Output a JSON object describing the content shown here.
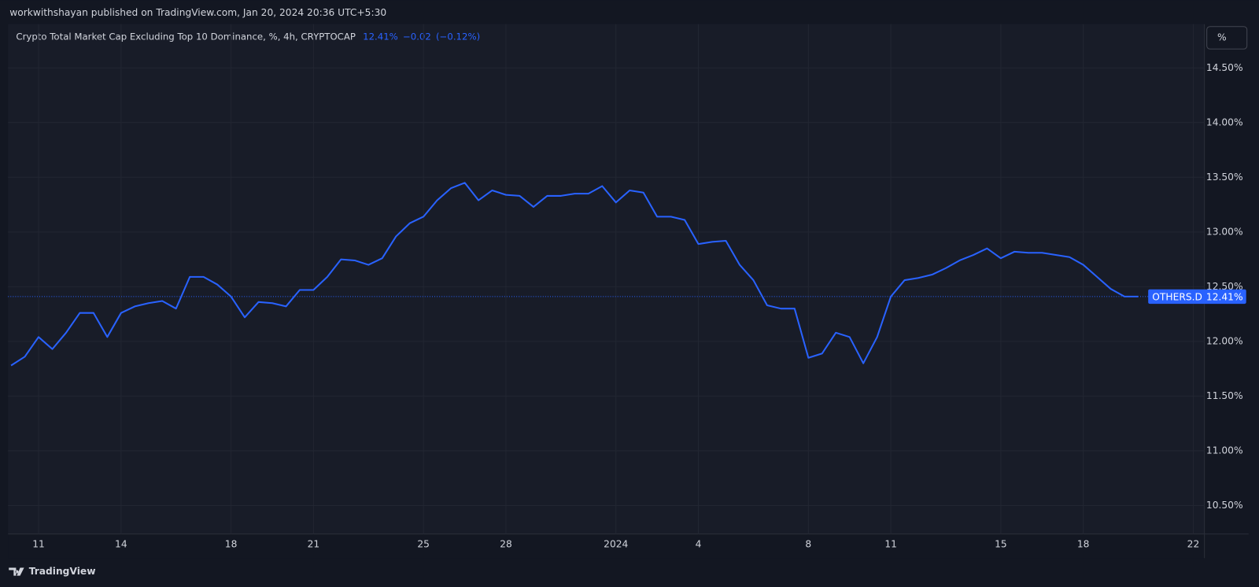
{
  "header": {
    "publisher": "workwithshayan published on TradingView.com, Jan 20, 2024 20:36 UTC+5:30",
    "scale_button": "%",
    "brand": "TradingView"
  },
  "chart_data": {
    "type": "line",
    "title": "Crypto Total Market Cap Excluding Top 10 Dominance, %, 4h, CRYPTOCAP",
    "change": "−0.02",
    "change_pct": "(−0.12%)",
    "price_line": {
      "name": "OTHERS.D",
      "value": 12.41,
      "label": "12.41%"
    },
    "categories": [
      null,
      null,
      "11",
      null,
      null,
      null,
      null,
      null,
      "14",
      null,
      null,
      null,
      null,
      null,
      null,
      null,
      "18",
      null,
      null,
      null,
      null,
      null,
      "21",
      null,
      null,
      null,
      null,
      null,
      null,
      null,
      "25",
      null,
      null,
      null,
      null,
      null,
      "28",
      null,
      null,
      null,
      null,
      null,
      null,
      null,
      "2024",
      null,
      null,
      null,
      null,
      null,
      "4",
      null,
      null,
      null,
      null,
      null,
      null,
      null,
      "8",
      null,
      null,
      null,
      null,
      null,
      "11",
      null,
      null,
      null,
      null,
      null,
      null,
      null,
      "15",
      null,
      null,
      null,
      null,
      null,
      "18",
      null,
      null,
      null,
      null,
      null,
      null,
      null,
      "22"
    ],
    "series": [
      {
        "name": "OTHERS.D",
        "color": "#2962ff",
        "values": [
          11.78,
          11.86,
          12.04,
          11.93,
          12.08,
          12.26,
          12.26,
          12.04,
          12.26,
          12.32,
          12.35,
          12.37,
          12.3,
          12.59,
          12.59,
          12.52,
          12.41,
          12.22,
          12.36,
          12.35,
          12.32,
          12.47,
          12.47,
          12.59,
          12.75,
          12.74,
          12.7,
          12.76,
          12.96,
          13.08,
          13.14,
          13.29,
          13.4,
          13.45,
          13.29,
          13.38,
          13.34,
          13.33,
          13.23,
          13.33,
          13.33,
          13.35,
          13.35,
          13.42,
          13.27,
          13.38,
          13.36,
          13.14,
          13.14,
          13.11,
          12.89,
          12.91,
          12.92,
          12.7,
          12.56,
          12.33,
          12.3,
          12.3,
          11.85,
          11.89,
          12.08,
          12.04,
          11.8,
          12.04,
          12.41,
          12.56,
          12.58,
          12.61,
          12.67,
          12.74,
          12.79,
          12.85,
          12.76,
          12.82,
          12.81,
          12.81,
          12.79,
          12.77,
          12.7,
          12.59,
          12.48,
          12.41,
          12.41,
          null,
          null,
          null,
          null
        ]
      }
    ],
    "ylim": [
      10.24,
      14.9
    ],
    "yticks": [
      {
        "value": 10.5,
        "label": "10.50%"
      },
      {
        "value": 11,
        "label": "11.00%"
      },
      {
        "value": 11.5,
        "label": "11.50%"
      },
      {
        "value": 12,
        "label": "12.00%"
      },
      {
        "value": 12.5,
        "label": "12.50%"
      },
      {
        "value": 13,
        "label": "13.00%"
      },
      {
        "value": 13.5,
        "label": "13.50%"
      },
      {
        "value": 14,
        "label": "14.00%"
      },
      {
        "value": 14.5,
        "label": "14.50%"
      }
    ],
    "grid": true
  }
}
